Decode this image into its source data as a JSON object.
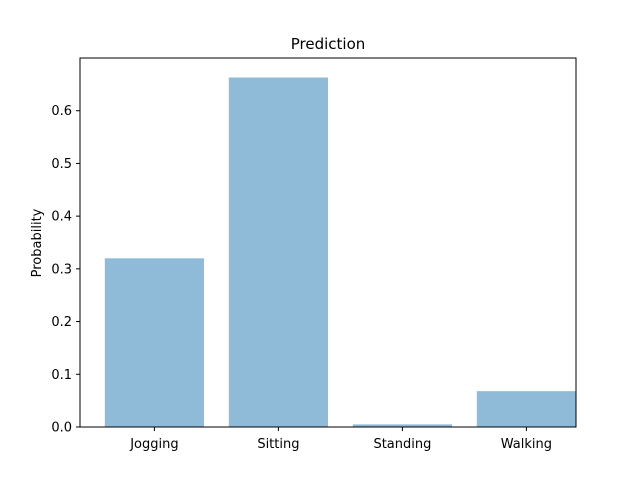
{
  "chart_data": {
    "type": "bar",
    "title": "Prediction",
    "xlabel": "",
    "ylabel": "Probability",
    "categories": [
      "Jogging",
      "Sitting",
      "Standing",
      "Walking"
    ],
    "values": [
      0.32,
      0.663,
      0.005,
      0.068
    ],
    "ylim": [
      0,
      0.7
    ],
    "yticks": [
      0.0,
      0.1,
      0.2,
      0.3,
      0.4,
      0.5,
      0.6
    ],
    "ytick_labels": [
      "0.0",
      "0.1",
      "0.2",
      "0.3",
      "0.4",
      "0.5",
      "0.6"
    ],
    "bar_color": "#8fbbd9",
    "grid": false,
    "legend": "none"
  }
}
